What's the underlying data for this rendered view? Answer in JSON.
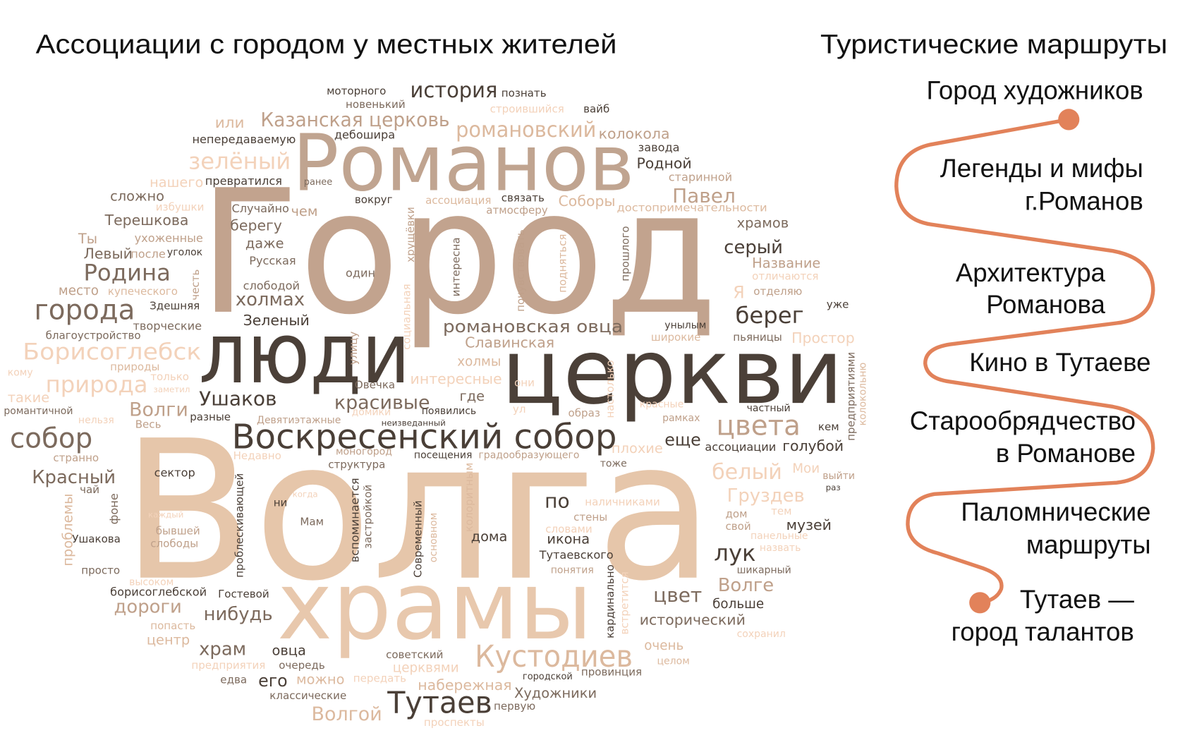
{
  "left_heading": "Ассоциации с городом у местных жителей",
  "right_heading": "Туристические маршруты",
  "colors": {
    "route_line": "#e2825a",
    "dark": "#4a3f37",
    "mid": "#7c6a5d",
    "tan": "#bfa08a",
    "light": "#dcb99e",
    "pale": "#f3d2ba"
  },
  "route": {
    "items": [
      {
        "lines": [
          "Город художников"
        ]
      },
      {
        "lines": [
          "Легенды и мифы",
          "г.Романов"
        ]
      },
      {
        "lines": [
          "Архитектура",
          "Романова"
        ]
      },
      {
        "lines": [
          "Кино в Тутаеве"
        ]
      },
      {
        "lines": [
          "Старообрядчество",
          "в Романове"
        ]
      },
      {
        "lines": [
          "Паломнические",
          "маршруты"
        ]
      },
      {
        "lines": [
          "Тутаев —",
          "город талантов"
        ]
      }
    ]
  },
  "cloud": {
    "words": [
      "Город",
      "Волга",
      "Романов",
      "храмы",
      "люди",
      "церкви",
      "Воскресенский собор",
      "Тутаев",
      "Кустодиев",
      "история",
      "Казанская церковь",
      "романовский",
      "моторного",
      "новенький",
      "познать",
      "строившийся",
      "вайб",
      "непередаваемую",
      "или",
      "дебошира",
      "колокола",
      "завода",
      "зелёный",
      "Родной",
      "превратился",
      "ранее",
      "нашего",
      "старинной",
      "Павел",
      "сложно",
      "вокруг",
      "ассоциация",
      "связать",
      "Соборы",
      "атмосферу",
      "достопримечательности",
      "избушки",
      "Случайно",
      "чем",
      "Терешкова",
      "храмов",
      "берегу",
      "Ты",
      "ухоженные",
      "даже",
      "серый",
      "Левый",
      "после",
      "уголок",
      "Русская",
      "Родина",
      "Название",
      "отличаются",
      "один",
      "место",
      "купеческого",
      "слободой",
      "Я",
      "отделяю",
      "холмах",
      "Здешняя",
      "уже",
      "города",
      "берег",
      "Зеленый",
      "творческие",
      "унылым",
      "романовская овца",
      "широкие",
      "пьяницы",
      "Простор",
      "благоустройство",
      "Славинская",
      "Борисоглебск",
      "кому",
      "природы",
      "холмы",
      "интересные",
      "природа",
      "только",
      "заметил",
      "Овечка",
      "они",
      "такие",
      "Ушаков",
      "красивые",
      "где",
      "Волги",
      "романтичной",
      "частный",
      "ул",
      "образ",
      "нельзя",
      "Весь",
      "разные",
      "Девятиэтажные",
      "домики",
      "появились",
      "неизведанный",
      "красные",
      "рамках",
      "цвета",
      "кем",
      "собор",
      "еще",
      "ассоциации",
      "голубой",
      "Недавно",
      "моногород",
      "посещения",
      "градообразующего",
      "плохие",
      "тоже",
      "странно",
      "структура",
      "белый",
      "Мои",
      "выйти",
      "раз",
      "Красный",
      "сектор",
      "чай",
      "Груздев",
      "ни",
      "когда",
      "по",
      "наличниками",
      "стены",
      "дом",
      "тем",
      "каждый",
      "Мам",
      "словами",
      "свой",
      "музей",
      "бывшей",
      "слободы",
      "дома",
      "икона",
      "панельные",
      "Ушакова",
      "назвать",
      "Тутаевского",
      "лук",
      "шикарный",
      "просто",
      "понятия",
      "высоком",
      "Волге",
      "борисоглебской",
      "Гостевой",
      "цвет",
      "больше",
      "дороги",
      "нибудь",
      "исторический",
      "попасть",
      "сохранил",
      "центр",
      "очень",
      "храм",
      "овца",
      "советский",
      "целом",
      "предприятия",
      "очередь",
      "церквями",
      "провинция",
      "городской",
      "едва",
      "его",
      "можно",
      "передать",
      "набережная",
      "классические",
      "Художники",
      "Волгой",
      "первую",
      "проспекты",
      "хрущёвки",
      "социальная",
      "улицу",
      "честь",
      "интересна",
      "почувствовать",
      "подняться",
      "прошлого",
      "настолько",
      "предприятиями",
      "колокольню",
      "проблемы",
      "фоне",
      "проблескивающей",
      "вспоминается",
      "застройкой",
      "Современный",
      "основном",
      "колоритным",
      "кардинально",
      "встретится"
    ]
  }
}
